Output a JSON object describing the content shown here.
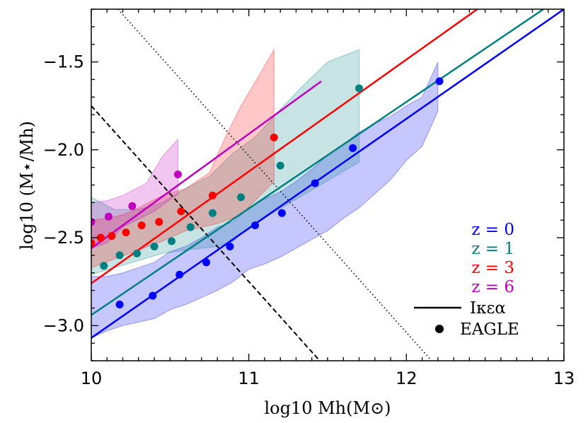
{
  "chart_data": {
    "type": "scatter",
    "xlabel": "log10 Mh(M⊙)",
    "ylabel": "log10 (M⋆/Mh)",
    "xlim": [
      10,
      13
    ],
    "ylim": [
      -3.2,
      -1.2
    ],
    "xticks": [
      10,
      11,
      12,
      13
    ],
    "yticks": [
      -3.0,
      -2.5,
      -2.0,
      -1.5
    ],
    "xtick_labels": [
      "10",
      "11",
      "12",
      "13"
    ],
    "ytick_labels": [
      "−3.0",
      "−2.5",
      "−2.0",
      "−1.5"
    ],
    "series": [
      {
        "name": "z = 0",
        "color": "#0000ff",
        "line": {
          "x": [
            10.0,
            13.0
          ],
          "y": [
            -3.07,
            -1.2
          ]
        },
        "points": {
          "x": [
            10.18,
            10.39,
            10.56,
            10.73,
            10.88,
            11.04,
            11.21,
            11.42,
            11.66,
            12.21
          ],
          "y": [
            -2.88,
            -2.83,
            -2.71,
            -2.64,
            -2.55,
            -2.43,
            -2.36,
            -2.19,
            -1.99,
            -1.61
          ]
        },
        "band": {
          "x": [
            10.0,
            10.1,
            10.2,
            10.3,
            10.4,
            10.5,
            10.6,
            10.7,
            10.8,
            10.9,
            11.0,
            11.1,
            11.2,
            11.3,
            11.4,
            11.5,
            11.6,
            11.7,
            11.8,
            11.9,
            12.0,
            12.1,
            12.2
          ],
          "upper": [
            -2.72,
            -2.72,
            -2.7,
            -2.67,
            -2.64,
            -2.58,
            -2.55,
            -2.5,
            -2.44,
            -2.41,
            -2.33,
            -2.28,
            -2.24,
            -2.18,
            -2.11,
            -2.03,
            -1.97,
            -1.9,
            -1.85,
            -1.81,
            -1.75,
            -1.7,
            -1.5
          ],
          "lower": [
            -3.07,
            -3.03,
            -3.0,
            -2.98,
            -2.96,
            -2.91,
            -2.88,
            -2.84,
            -2.8,
            -2.75,
            -2.68,
            -2.65,
            -2.61,
            -2.56,
            -2.51,
            -2.46,
            -2.39,
            -2.33,
            -2.25,
            -2.17,
            -2.06,
            -1.98,
            -1.78
          ]
        }
      },
      {
        "name": "z = 1",
        "color": "#008080",
        "line": {
          "x": [
            10.0,
            12.87
          ],
          "y": [
            -2.94,
            -1.2
          ]
        },
        "points": {
          "x": [
            10.08,
            10.18,
            10.29,
            10.4,
            10.51,
            10.63,
            10.77,
            10.95,
            11.2,
            11.7
          ],
          "y": [
            -2.66,
            -2.6,
            -2.59,
            -2.55,
            -2.52,
            -2.44,
            -2.36,
            -2.27,
            -2.09,
            -1.65
          ]
        },
        "band": {
          "x": [
            10.0,
            10.15,
            10.3,
            10.45,
            10.6,
            10.75,
            10.9,
            11.05,
            11.2,
            11.35,
            11.5,
            11.7,
            11.7,
            11.0,
            10.9,
            10.8,
            10.6,
            10.45,
            10.3,
            10.15,
            10.0
          ],
          "y": [
            -2.27,
            -2.34,
            -2.34,
            -2.3,
            -2.22,
            -2.15,
            -2.02,
            -1.92,
            -1.77,
            -1.63,
            -1.5,
            -1.43,
            -2.07,
            -2.44,
            -2.52,
            -2.55,
            -2.57,
            -2.59,
            -2.63,
            -2.67,
            -2.71
          ]
        }
      },
      {
        "name": "z = 3",
        "color": "#ff0000",
        "line": {
          "x": [
            10.0,
            12.45
          ],
          "y": [
            -2.76,
            -1.2
          ]
        },
        "points": {
          "x": [
            10.0,
            10.06,
            10.13,
            10.22,
            10.32,
            10.43,
            10.57,
            10.77,
            11.16
          ],
          "y": [
            -2.53,
            -2.5,
            -2.49,
            -2.47,
            -2.43,
            -2.41,
            -2.35,
            -2.26,
            -1.93
          ]
        },
        "band": {
          "x": [
            10.0,
            10.1,
            10.2,
            10.3,
            10.45,
            10.6,
            10.75,
            10.85,
            10.95,
            11.05,
            11.16,
            11.16,
            10.95,
            10.8,
            10.6,
            10.45,
            10.3,
            10.15,
            10.0
          ],
          "y": [
            -2.4,
            -2.39,
            -2.37,
            -2.33,
            -2.26,
            -2.22,
            -2.13,
            -1.93,
            -1.75,
            -1.6,
            -1.43,
            -2.18,
            -2.37,
            -2.42,
            -2.46,
            -2.52,
            -2.57,
            -2.62,
            -2.67
          ]
        }
      },
      {
        "name": "z = 6",
        "color": "#bf00bf",
        "line": {
          "x": [
            10.0,
            11.46
          ],
          "y": [
            -2.56,
            -1.61
          ]
        },
        "points": {
          "x": [
            10.0,
            10.11,
            10.26,
            10.55
          ],
          "y": [
            -2.41,
            -2.38,
            -2.32,
            -2.14
          ]
        },
        "band": {
          "x": [
            10.0,
            10.1,
            10.2,
            10.35,
            10.45,
            10.55,
            10.55,
            10.4,
            10.2,
            10.1,
            10.0
          ],
          "y": [
            -2.3,
            -2.29,
            -2.26,
            -2.19,
            -2.04,
            -1.94,
            -2.25,
            -2.35,
            -2.44,
            -2.53,
            -2.56
          ]
        }
      }
    ],
    "reference_lines": [
      {
        "name": "dashed",
        "style": "dashed",
        "color": "#000000",
        "x": [
          10.0,
          11.45
        ],
        "y": [
          -1.75,
          -3.2
        ]
      },
      {
        "name": "dotted",
        "style": "dotted",
        "color": "#000000",
        "x": [
          10.17,
          12.16
        ],
        "y": [
          -1.2,
          -3.2
        ]
      }
    ],
    "legend": {
      "placement": "bottom-right",
      "redshift_entries": [
        {
          "label": "z = 0",
          "color": "#0000ff"
        },
        {
          "label": "z = 1",
          "color": "#008080"
        },
        {
          "label": "z = 3",
          "color": "#ff0000"
        },
        {
          "label": "z = 6",
          "color": "#bf00bf"
        }
      ],
      "line_entry": {
        "label": "Iκεα"
      },
      "marker_entry": {
        "label": "EAGLE"
      }
    }
  }
}
